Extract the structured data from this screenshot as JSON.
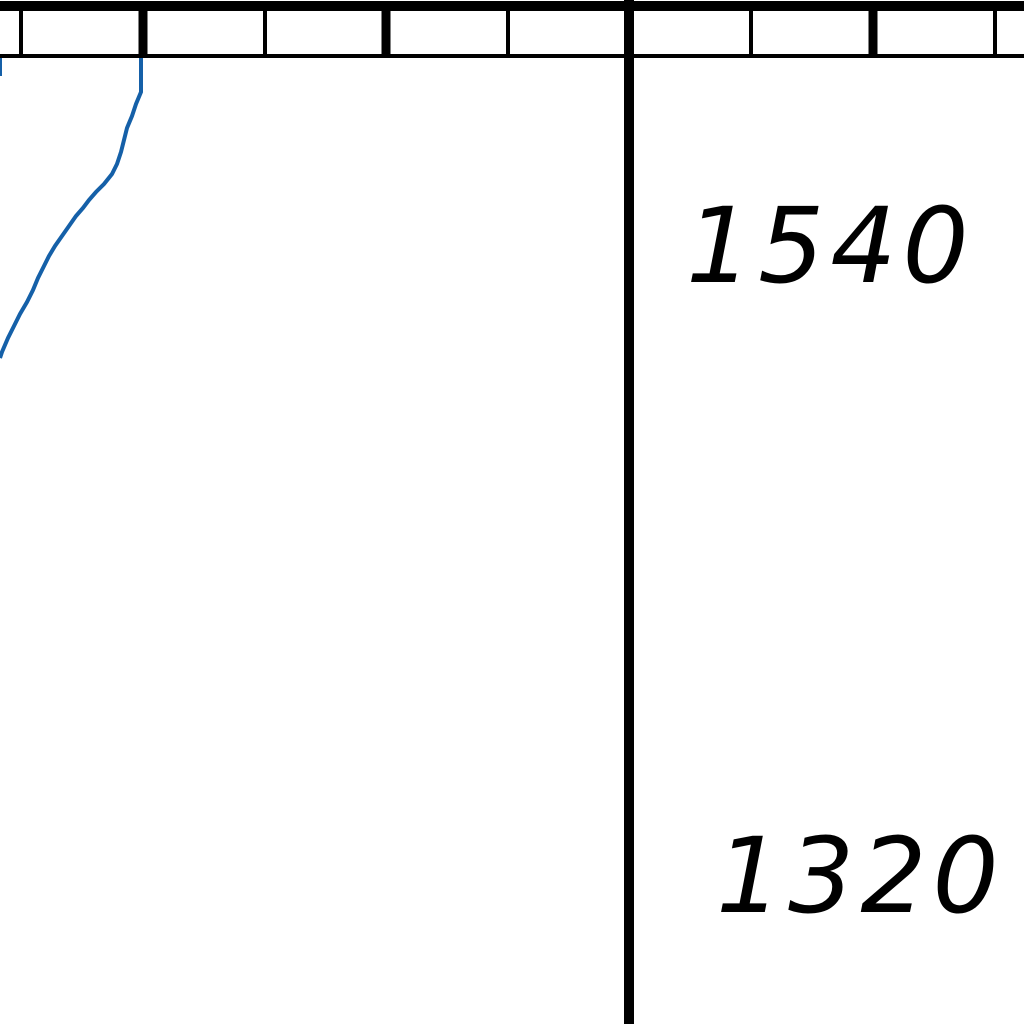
{
  "map": {
    "labels": {
      "upper": "1540",
      "lower": "1320"
    },
    "colors": {
      "background": "#ffffff",
      "frame_line": "#000000",
      "river_line": "#1560a8"
    }
  }
}
